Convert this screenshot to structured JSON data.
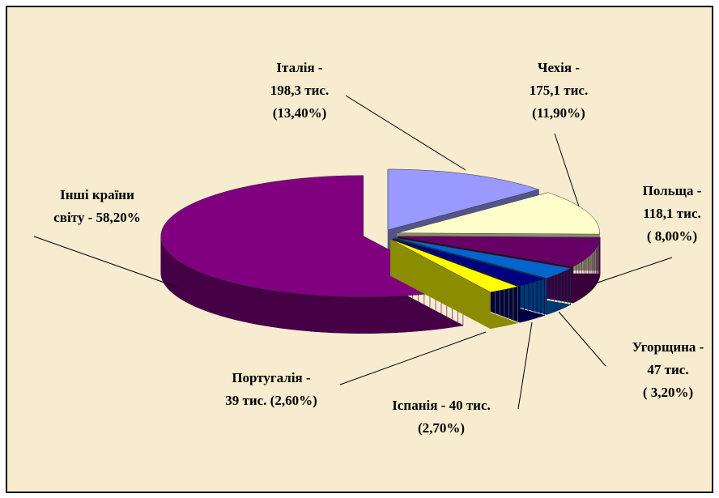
{
  "chart_data": {
    "type": "pie",
    "style": "3d-exploded",
    "categories": [
      "Італія",
      "Чехія",
      "Польща",
      "Угорщина",
      "Іспанія",
      "Португалія",
      "Інші країни світу"
    ],
    "values": [
      13.4,
      11.9,
      8.0,
      3.2,
      2.7,
      2.6,
      58.2
    ],
    "labels": [
      [
        "Італія -",
        "198,3 тис.",
        "(13,40%)"
      ],
      [
        "Чехія -",
        "175,1 тис.",
        "(11,90%)"
      ],
      [
        "Польща -",
        "118,1 тис.",
        "( 8,00%)"
      ],
      [
        "Угорщина -",
        "47 тис.",
        "( 3,20%)"
      ],
      [
        "Іспанія - 40 тис.",
        "(2,70%)"
      ],
      [
        "Португалія -",
        "39 тис.  (2,60%)"
      ],
      [
        "Інші країни",
        "світу - 58,20%"
      ]
    ],
    "colors": [
      "#9999ff",
      "#ffffcc",
      "#660066",
      "#0066cc",
      "#000080",
      "#ffff00",
      "#800080"
    ]
  }
}
